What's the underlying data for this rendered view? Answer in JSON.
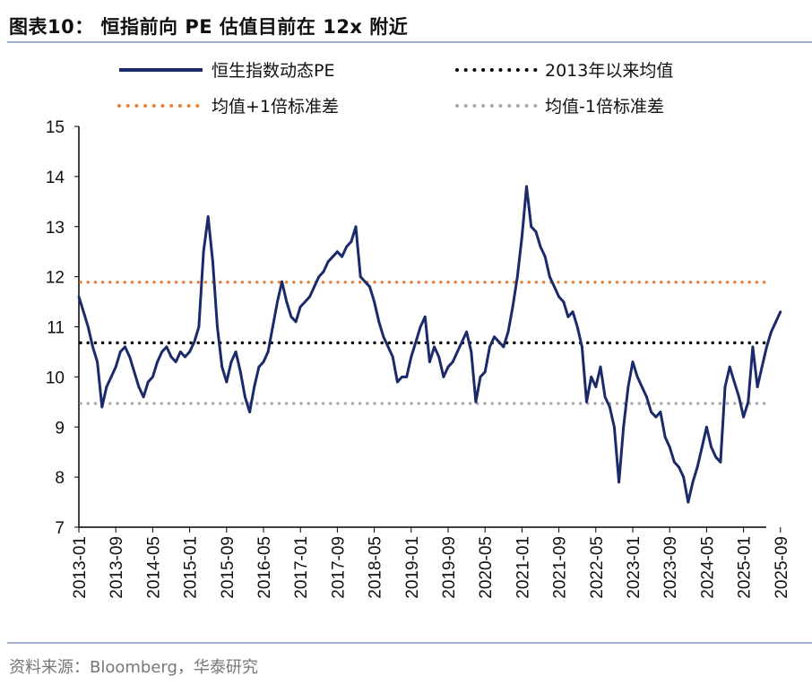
{
  "title": "图表10：  恒指前向 PE 估值目前在 12x 附近",
  "source": "资料来源：Bloomberg，华泰研究",
  "chart_data": {
    "type": "line",
    "title": "图表10：  恒指前向 PE 估值目前在 12x 附近",
    "xlabel": "",
    "ylabel": "",
    "ylim": [
      7,
      15
    ],
    "yticks": [
      "7",
      "8",
      "9",
      "10",
      "11",
      "12",
      "13",
      "14",
      "15"
    ],
    "xticks": [
      "2013-01",
      "2013-09",
      "2014-05",
      "2015-01",
      "2015-09",
      "2016-05",
      "2017-01",
      "2017-09",
      "2018-05",
      "2019-01",
      "2019-09",
      "2020-05",
      "2021-01",
      "2021-09",
      "2022-05",
      "2023-01",
      "2023-09",
      "2024-05",
      "2025-01",
      "2025-09"
    ],
    "grid": false,
    "legend_position": "top",
    "colors": {
      "pe": "#1b2a6b",
      "mean": "#000000",
      "plus1sd": "#e8823a",
      "minus1sd": "#aaaaaa"
    },
    "series": [
      {
        "name": "恒生指数动态PE",
        "x": [
          "2013-01",
          "2013-02",
          "2013-03",
          "2013-04",
          "2013-05",
          "2013-06",
          "2013-07",
          "2013-08",
          "2013-09",
          "2013-10",
          "2013-11",
          "2013-12",
          "2014-01",
          "2014-02",
          "2014-03",
          "2014-04",
          "2014-05",
          "2014-06",
          "2014-07",
          "2014-08",
          "2014-09",
          "2014-10",
          "2014-11",
          "2014-12",
          "2015-01",
          "2015-02",
          "2015-03",
          "2015-04",
          "2015-05",
          "2015-06",
          "2015-07",
          "2015-08",
          "2015-09",
          "2015-10",
          "2015-11",
          "2015-12",
          "2016-01",
          "2016-02",
          "2016-03",
          "2016-04",
          "2016-05",
          "2016-06",
          "2016-07",
          "2016-08",
          "2016-09",
          "2016-10",
          "2016-11",
          "2016-12",
          "2017-01",
          "2017-02",
          "2017-03",
          "2017-04",
          "2017-05",
          "2017-06",
          "2017-07",
          "2017-08",
          "2017-09",
          "2017-10",
          "2017-11",
          "2017-12",
          "2018-01",
          "2018-02",
          "2018-03",
          "2018-04",
          "2018-05",
          "2018-06",
          "2018-07",
          "2018-08",
          "2018-09",
          "2018-10",
          "2018-11",
          "2018-12",
          "2019-01",
          "2019-02",
          "2019-03",
          "2019-04",
          "2019-05",
          "2019-06",
          "2019-07",
          "2019-08",
          "2019-09",
          "2019-10",
          "2019-11",
          "2019-12",
          "2020-01",
          "2020-02",
          "2020-03",
          "2020-04",
          "2020-05",
          "2020-06",
          "2020-07",
          "2020-08",
          "2020-09",
          "2020-10",
          "2020-11",
          "2020-12",
          "2021-01",
          "2021-02",
          "2021-03",
          "2021-04",
          "2021-05",
          "2021-06",
          "2021-07",
          "2021-08",
          "2021-09",
          "2021-10",
          "2021-11",
          "2021-12",
          "2022-01",
          "2022-02",
          "2022-03",
          "2022-04",
          "2022-05",
          "2022-06",
          "2022-07",
          "2022-08",
          "2022-09",
          "2022-10",
          "2022-11",
          "2022-12",
          "2023-01",
          "2023-02",
          "2023-03",
          "2023-04",
          "2023-05",
          "2023-06",
          "2023-07",
          "2023-08",
          "2023-09",
          "2023-10",
          "2023-11",
          "2023-12",
          "2024-01",
          "2024-02",
          "2024-03",
          "2024-04",
          "2024-05",
          "2024-06",
          "2024-07",
          "2024-08",
          "2024-09",
          "2024-10",
          "2024-11",
          "2024-12",
          "2025-01",
          "2025-02",
          "2025-03",
          "2025-04",
          "2025-05",
          "2025-06",
          "2025-07",
          "2025-08",
          "2025-09"
        ],
        "values": [
          11.6,
          11.3,
          11.0,
          10.6,
          10.3,
          9.4,
          9.8,
          10.0,
          10.2,
          10.5,
          10.6,
          10.4,
          10.1,
          9.8,
          9.6,
          9.9,
          10.0,
          10.3,
          10.5,
          10.6,
          10.4,
          10.3,
          10.5,
          10.4,
          10.5,
          10.7,
          11.0,
          12.5,
          13.2,
          12.3,
          11.0,
          10.2,
          9.9,
          10.3,
          10.5,
          10.1,
          9.6,
          9.3,
          9.8,
          10.2,
          10.3,
          10.5,
          11.0,
          11.5,
          11.9,
          11.5,
          11.2,
          11.1,
          11.4,
          11.5,
          11.6,
          11.8,
          12.0,
          12.1,
          12.3,
          12.4,
          12.5,
          12.4,
          12.6,
          12.7,
          13.0,
          12.0,
          11.9,
          11.8,
          11.5,
          11.1,
          10.8,
          10.6,
          10.4,
          9.9,
          10.0,
          10.0,
          10.4,
          10.7,
          11.0,
          11.2,
          10.3,
          10.6,
          10.4,
          10.0,
          10.2,
          10.3,
          10.5,
          10.7,
          10.9,
          10.5,
          9.5,
          10.0,
          10.1,
          10.6,
          10.8,
          10.7,
          10.6,
          10.9,
          11.4,
          12.0,
          12.8,
          13.8,
          13.0,
          12.9,
          12.6,
          12.4,
          12.0,
          11.8,
          11.6,
          11.5,
          11.2,
          11.3,
          11.0,
          10.6,
          9.5,
          10.0,
          9.8,
          10.2,
          9.6,
          9.4,
          9.0,
          7.9,
          9.0,
          9.8,
          10.3,
          10.0,
          9.8,
          9.6,
          9.3,
          9.2,
          9.3,
          8.8,
          8.6,
          8.3,
          8.2,
          8.0,
          7.5,
          7.9,
          8.2,
          8.6,
          9.0,
          8.6,
          8.4,
          8.3,
          9.8,
          10.2,
          9.9,
          9.6,
          9.2,
          9.5,
          10.6,
          9.8,
          10.2,
          10.6,
          10.9,
          11.1,
          11.3
        ]
      },
      {
        "name": "2013年以来均值",
        "value": 10.68
      },
      {
        "name": "均值+1倍标准差",
        "value": 11.89
      },
      {
        "name": "均值-1倍标准差",
        "value": 9.47
      }
    ]
  }
}
